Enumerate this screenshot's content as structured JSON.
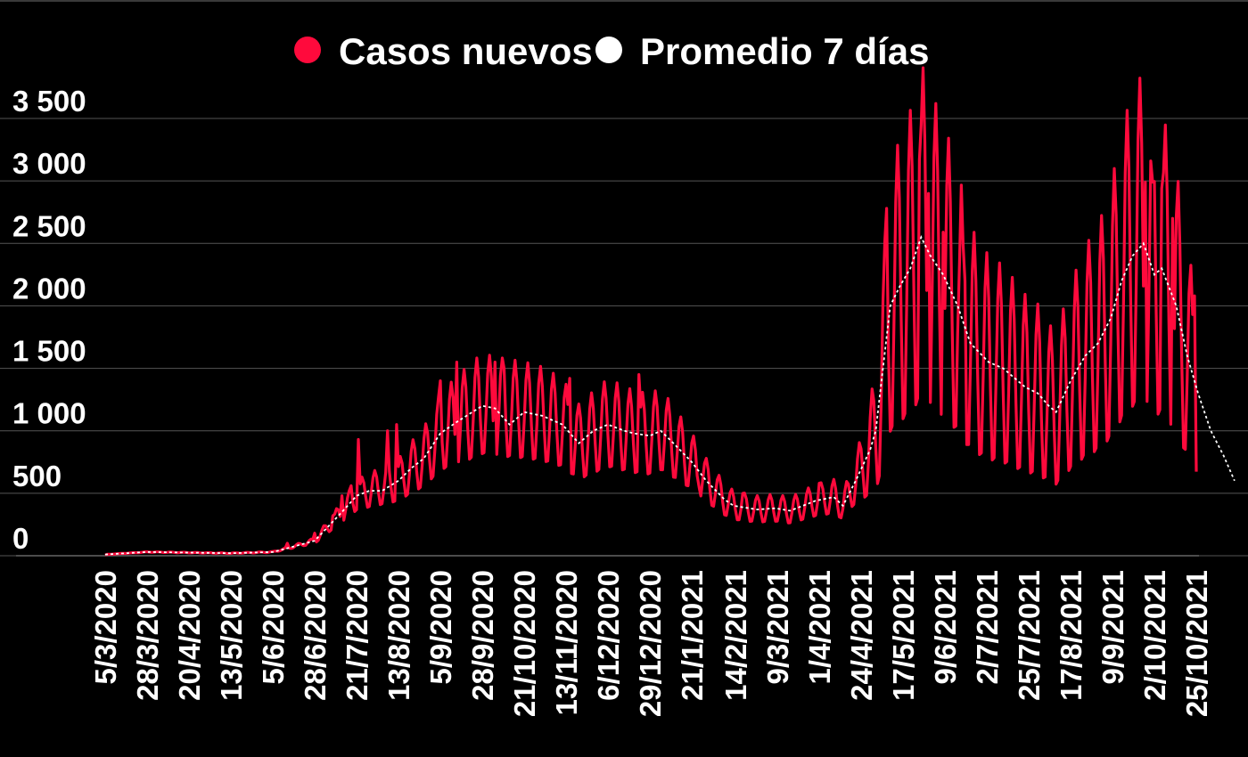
{
  "chart_data": {
    "type": "line",
    "title": "",
    "xlabel": "",
    "ylabel": "",
    "ylim": [
      0,
      3500
    ],
    "yticks": [
      0,
      500,
      1000,
      1500,
      2000,
      2500,
      3000,
      3500
    ],
    "ytick_labels": [
      "0",
      "500",
      "1 000",
      "1 500",
      "2 000",
      "2 500",
      "3 000",
      "3 500"
    ],
    "xtick_labels": [
      "5/3/2020",
      "28/3/2020",
      "20/4/2020",
      "13/5/2020",
      "5/6/2020",
      "28/6/2020",
      "21/7/2020",
      "13/8/2020",
      "5/9/2020",
      "28/9/2020",
      "21/10/2020",
      "13/11/2020",
      "6/12/2020",
      "29/12/2020",
      "21/1/2021",
      "14/2/2021",
      "9/3/2021",
      "1/4/2021",
      "24/4/2021",
      "17/5/2021",
      "9/6/2021",
      "2/7/2021",
      "25/7/2021",
      "17/8/2021",
      "9/9/2021",
      "2/10/2021",
      "25/10/2021"
    ],
    "x_range": [
      "5/3/2020",
      "25/10/2021"
    ],
    "legend_position": "top-center",
    "grid": true,
    "series": [
      {
        "name": "Casos nuevos",
        "color": "#ff0a3c",
        "trend": [
          [
            0,
            10
          ],
          [
            23,
            30
          ],
          [
            46,
            25
          ],
          [
            69,
            20
          ],
          [
            92,
            30
          ],
          [
            100,
            60
          ],
          [
            115,
            120
          ],
          [
            130,
            350
          ],
          [
            138,
            480
          ],
          [
            145,
            520
          ],
          [
            161,
            600
          ],
          [
            168,
            700
          ],
          [
            175,
            780
          ],
          [
            184,
            980
          ],
          [
            194,
            1080
          ],
          [
            207,
            1200
          ],
          [
            214,
            1180
          ],
          [
            230,
            1150
          ],
          [
            240,
            1120
          ],
          [
            251,
            1050
          ],
          [
            260,
            900
          ],
          [
            276,
            1050
          ],
          [
            290,
            980
          ],
          [
            299,
            960
          ],
          [
            305,
            1000
          ],
          [
            312,
            900
          ],
          [
            322,
            750
          ],
          [
            330,
            600
          ],
          [
            340,
            450
          ],
          [
            345,
            400
          ],
          [
            358,
            370
          ],
          [
            368,
            380
          ],
          [
            376,
            360
          ],
          [
            390,
            440
          ],
          [
            400,
            470
          ],
          [
            405,
            400
          ],
          [
            412,
            600
          ],
          [
            420,
            850
          ],
          [
            423,
            1000
          ],
          [
            427,
            1500
          ],
          [
            431,
            2000
          ],
          [
            436,
            2150
          ],
          [
            442,
            2300
          ],
          [
            448,
            2550
          ],
          [
            453,
            2400
          ],
          [
            460,
            2250
          ],
          [
            468,
            2000
          ],
          [
            475,
            1700
          ],
          [
            485,
            1550
          ],
          [
            493,
            1500
          ],
          [
            505,
            1350
          ],
          [
            512,
            1300
          ],
          [
            518,
            1200
          ],
          [
            522,
            1150
          ],
          [
            530,
            1400
          ],
          [
            538,
            1600
          ],
          [
            545,
            1700
          ],
          [
            552,
            1900
          ],
          [
            558,
            2200
          ],
          [
            564,
            2400
          ],
          [
            570,
            2500
          ],
          [
            576,
            2250
          ],
          [
            580,
            2300
          ],
          [
            588,
            2000
          ],
          [
            594,
            1600
          ],
          [
            600,
            1300
          ],
          [
            607,
            1000
          ],
          [
            614,
            800
          ],
          [
            620,
            600
          ]
        ],
        "weekly_amplitude": [
          [
            0,
            0.05
          ],
          [
            100,
            0.15
          ],
          [
            130,
            0.25
          ],
          [
            200,
            0.35
          ],
          [
            300,
            0.35
          ],
          [
            330,
            0.3
          ],
          [
            410,
            0.3
          ],
          [
            425,
            0.55
          ],
          [
            620,
            0.55
          ]
        ],
        "annotated_points": [
          [
            0,
            5
          ],
          [
            100,
            100
          ],
          [
            115,
            180
          ],
          [
            125,
            320
          ],
          [
            130,
            480
          ],
          [
            135,
            560
          ],
          [
            139,
            930
          ],
          [
            155,
            1000
          ],
          [
            160,
            1050
          ],
          [
            184,
            1400
          ],
          [
            193,
            1550
          ],
          [
            214,
            1550
          ],
          [
            219,
            1500
          ],
          [
            255,
            1420
          ],
          [
            293,
            1450
          ],
          [
            326,
            550
          ],
          [
            350,
            500
          ],
          [
            392,
            580
          ],
          [
            429,
            2780
          ],
          [
            447,
            3170
          ],
          [
            452,
            2900
          ],
          [
            460,
            2590
          ],
          [
            469,
            2350
          ],
          [
            472,
            2200
          ],
          [
            571,
            2990
          ],
          [
            575,
            2990
          ],
          [
            580,
            2940
          ],
          [
            586,
            2700
          ],
          [
            598,
            2080
          ],
          [
            603,
            1620
          ],
          [
            609,
            1310
          ],
          [
            617,
            950
          ],
          [
            620,
            300
          ]
        ]
      },
      {
        "name": "Promedio 7 días",
        "color": "#ffffff",
        "points": [
          [
            0,
            10
          ],
          [
            23,
            30
          ],
          [
            46,
            25
          ],
          [
            69,
            20
          ],
          [
            92,
            30
          ],
          [
            100,
            60
          ],
          [
            115,
            120
          ],
          [
            130,
            350
          ],
          [
            138,
            480
          ],
          [
            145,
            520
          ],
          [
            152,
            520
          ],
          [
            161,
            600
          ],
          [
            168,
            700
          ],
          [
            175,
            780
          ],
          [
            184,
            980
          ],
          [
            194,
            1080
          ],
          [
            207,
            1200
          ],
          [
            214,
            1180
          ],
          [
            222,
            1050
          ],
          [
            230,
            1150
          ],
          [
            240,
            1120
          ],
          [
            251,
            1050
          ],
          [
            260,
            900
          ],
          [
            268,
            1000
          ],
          [
            276,
            1050
          ],
          [
            285,
            1000
          ],
          [
            290,
            980
          ],
          [
            299,
            960
          ],
          [
            305,
            1000
          ],
          [
            312,
            900
          ],
          [
            322,
            750
          ],
          [
            330,
            600
          ],
          [
            340,
            450
          ],
          [
            345,
            400
          ],
          [
            358,
            370
          ],
          [
            368,
            380
          ],
          [
            376,
            360
          ],
          [
            390,
            440
          ],
          [
            400,
            470
          ],
          [
            405,
            400
          ],
          [
            412,
            600
          ],
          [
            420,
            850
          ],
          [
            423,
            1000
          ],
          [
            427,
            1500
          ],
          [
            431,
            2000
          ],
          [
            436,
            2150
          ],
          [
            442,
            2300
          ],
          [
            448,
            2550
          ],
          [
            453,
            2400
          ],
          [
            460,
            2250
          ],
          [
            468,
            2000
          ],
          [
            475,
            1700
          ],
          [
            485,
            1550
          ],
          [
            493,
            1500
          ],
          [
            505,
            1350
          ],
          [
            512,
            1300
          ],
          [
            518,
            1200
          ],
          [
            522,
            1150
          ],
          [
            530,
            1400
          ],
          [
            538,
            1600
          ],
          [
            545,
            1700
          ],
          [
            552,
            1900
          ],
          [
            558,
            2200
          ],
          [
            564,
            2400
          ],
          [
            570,
            2500
          ],
          [
            576,
            2250
          ],
          [
            580,
            2300
          ],
          [
            588,
            2000
          ],
          [
            594,
            1600
          ],
          [
            600,
            1300
          ],
          [
            607,
            1000
          ],
          [
            614,
            800
          ],
          [
            620,
            600
          ]
        ]
      }
    ]
  }
}
